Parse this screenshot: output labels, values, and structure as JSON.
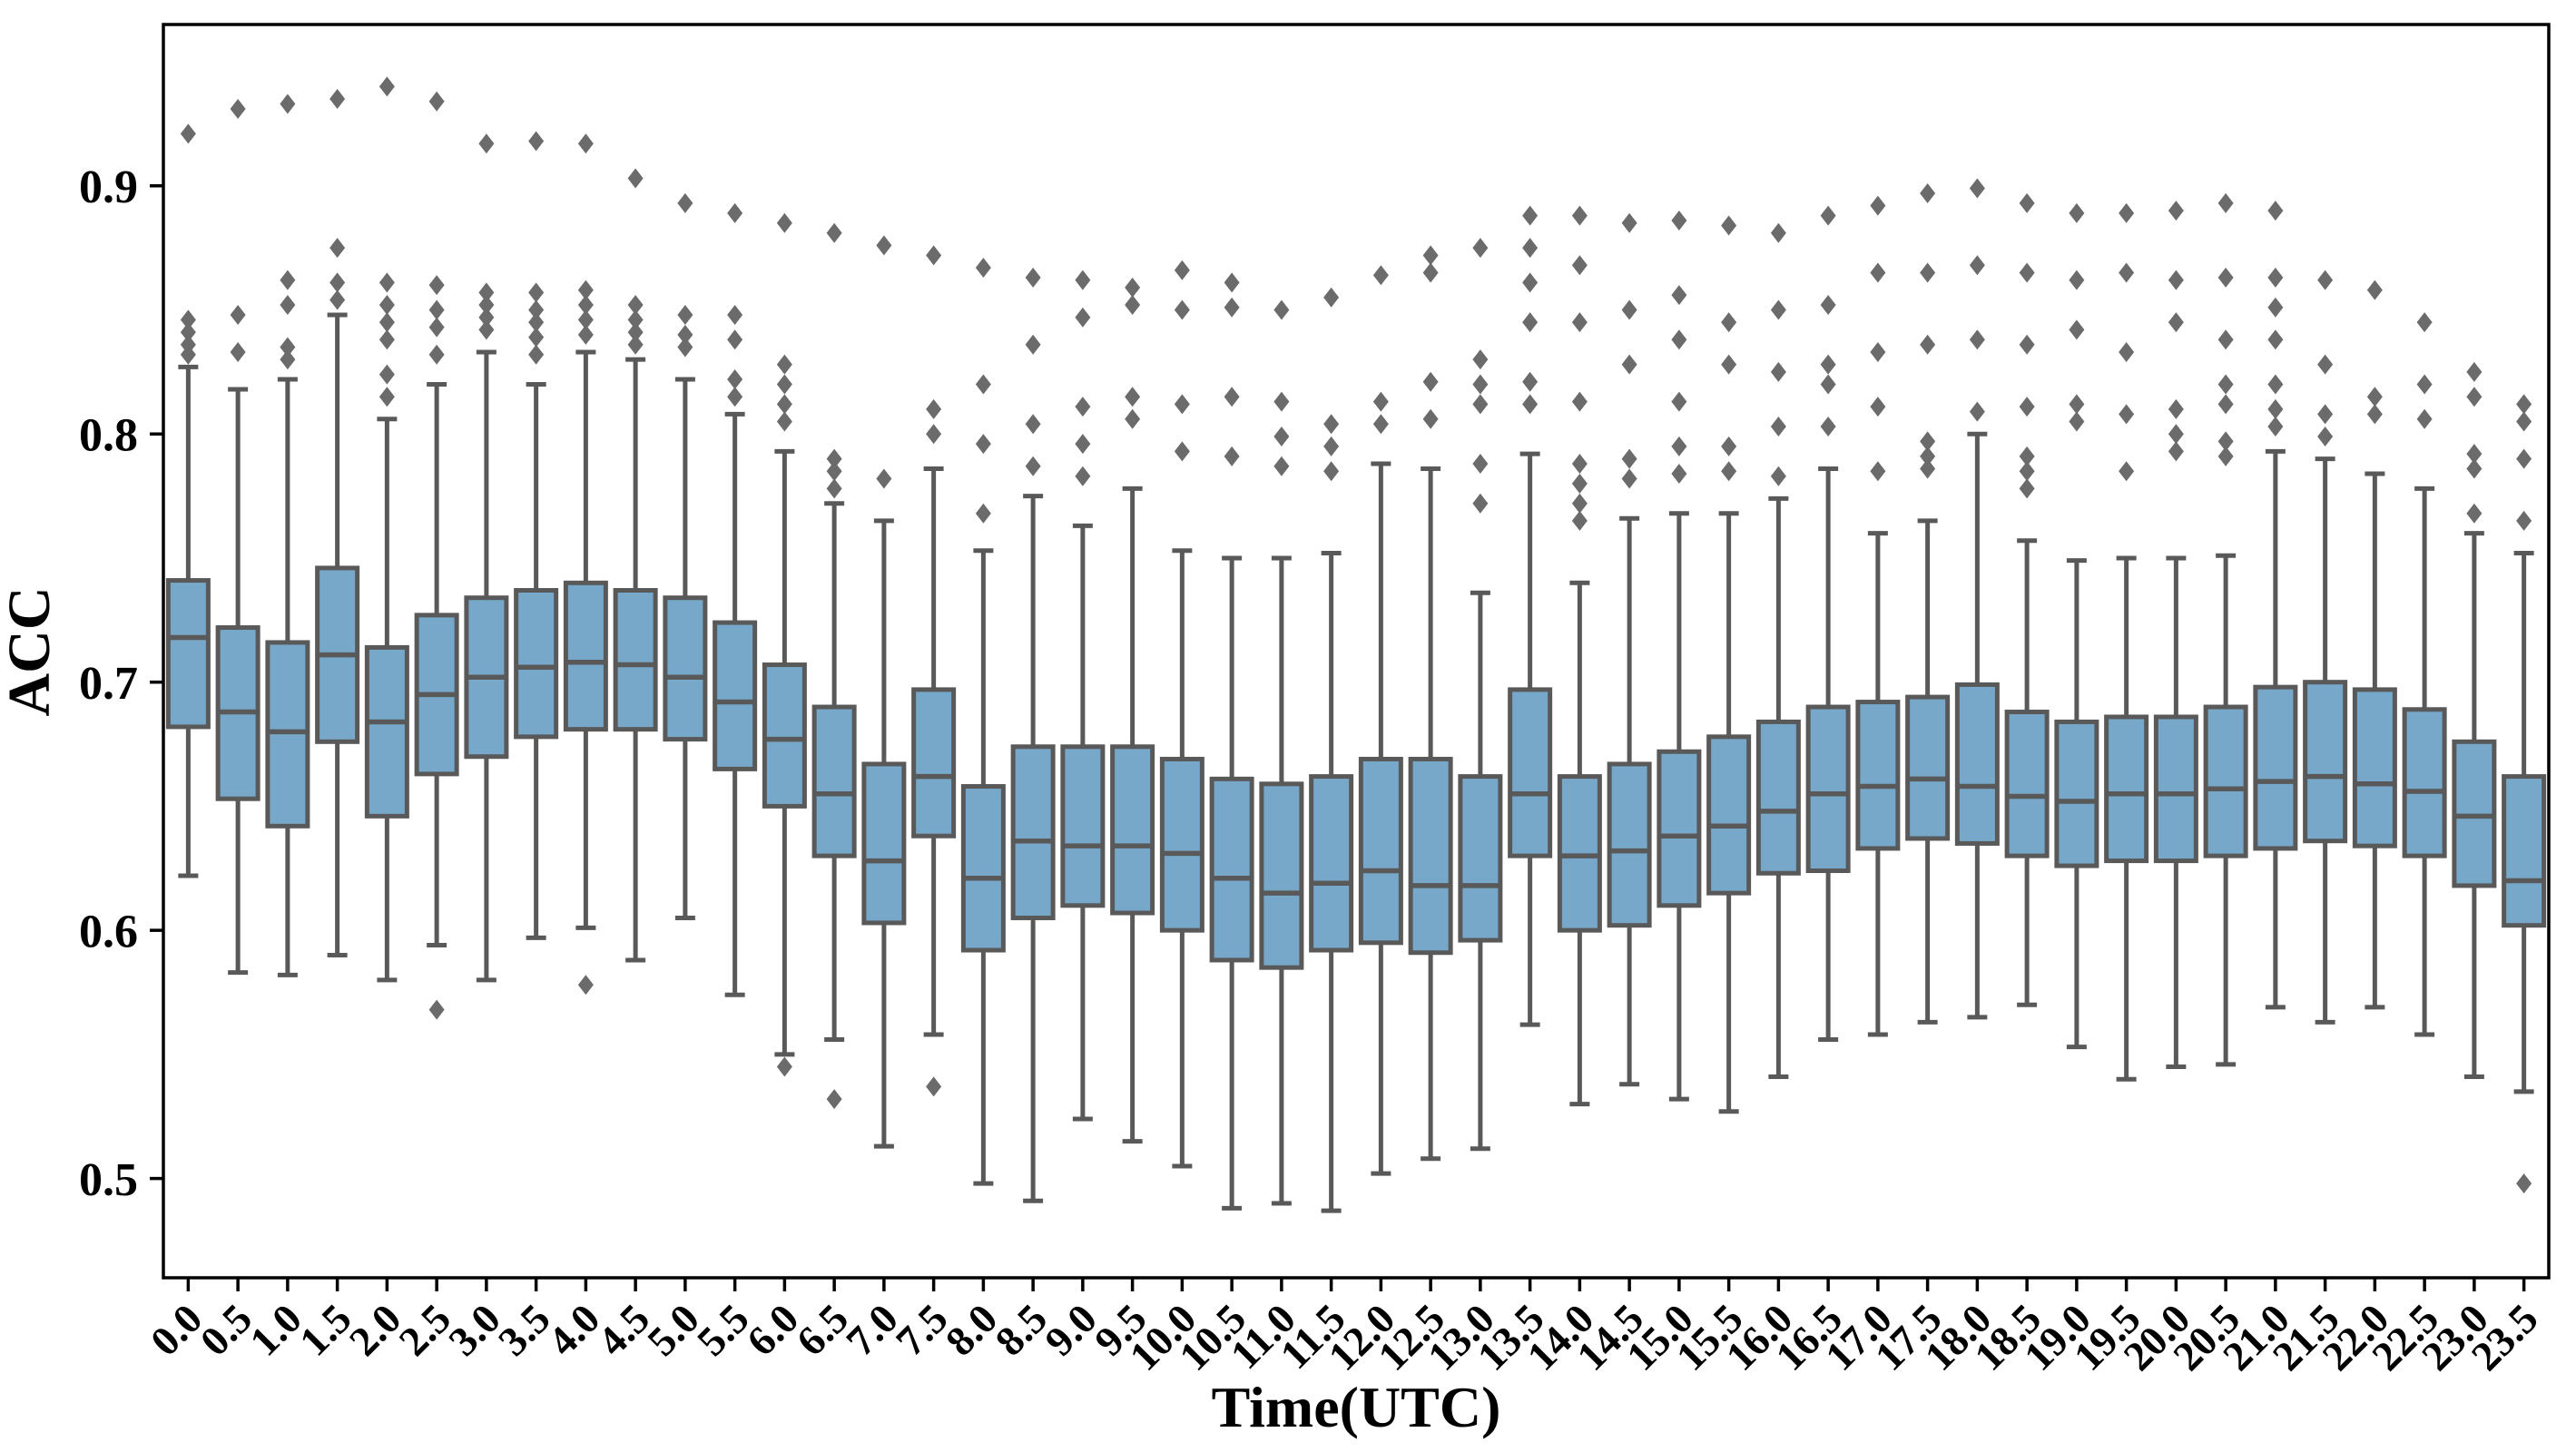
{
  "figure": {
    "background": "#ffffff"
  },
  "chart_data": {
    "type": "box",
    "title": "",
    "xlabel": "Time(UTC)",
    "ylabel": "ACC",
    "grid": false,
    "legend_position": "none",
    "ylim": [
      0.46,
      0.965
    ],
    "y_ticks": [
      {
        "value": 0.5,
        "label": "0.5"
      },
      {
        "value": 0.6,
        "label": "0.6"
      },
      {
        "value": 0.7,
        "label": "0.7"
      },
      {
        "value": 0.8,
        "label": "0.8"
      },
      {
        "value": 0.9,
        "label": "0.9"
      }
    ],
    "styles": {
      "box_fill": "#77a8c9",
      "box_edge": "#595959",
      "whisker_color": "#595959",
      "median_color": "#595959",
      "outlier_color": "#6b6b6b",
      "axis_color": "#000000"
    },
    "boxes": [
      {
        "time": "0.0",
        "q1": 0.682,
        "median": 0.718,
        "q3": 0.741,
        "whisker_low": 0.622,
        "whisker_high": 0.827,
        "outliers": [
          0.832,
          0.836,
          0.841,
          0.846,
          0.921
        ]
      },
      {
        "time": "0.5",
        "q1": 0.653,
        "median": 0.688,
        "q3": 0.722,
        "whisker_low": 0.583,
        "whisker_high": 0.818,
        "outliers": [
          0.833,
          0.848,
          0.931
        ]
      },
      {
        "time": "1.0",
        "q1": 0.642,
        "median": 0.68,
        "q3": 0.716,
        "whisker_low": 0.582,
        "whisker_high": 0.822,
        "outliers": [
          0.83,
          0.835,
          0.852,
          0.862,
          0.933
        ]
      },
      {
        "time": "1.5",
        "q1": 0.676,
        "median": 0.711,
        "q3": 0.746,
        "whisker_low": 0.59,
        "whisker_high": 0.848,
        "outliers": [
          0.854,
          0.861,
          0.875,
          0.935
        ]
      },
      {
        "time": "2.0",
        "q1": 0.646,
        "median": 0.684,
        "q3": 0.714,
        "whisker_low": 0.58,
        "whisker_high": 0.806,
        "outliers": [
          0.815,
          0.824,
          0.838,
          0.845,
          0.852,
          0.861,
          0.94
        ]
      },
      {
        "time": "2.5",
        "q1": 0.663,
        "median": 0.695,
        "q3": 0.727,
        "whisker_low": 0.594,
        "whisker_high": 0.82,
        "outliers": [
          0.568,
          0.832,
          0.843,
          0.85,
          0.86,
          0.934
        ]
      },
      {
        "time": "3.0",
        "q1": 0.67,
        "median": 0.702,
        "q3": 0.734,
        "whisker_low": 0.58,
        "whisker_high": 0.833,
        "outliers": [
          0.842,
          0.847,
          0.852,
          0.857,
          0.917
        ]
      },
      {
        "time": "3.5",
        "q1": 0.678,
        "median": 0.706,
        "q3": 0.737,
        "whisker_low": 0.597,
        "whisker_high": 0.82,
        "outliers": [
          0.832,
          0.839,
          0.845,
          0.85,
          0.857,
          0.918
        ]
      },
      {
        "time": "4.0",
        "q1": 0.681,
        "median": 0.708,
        "q3": 0.74,
        "whisker_low": 0.601,
        "whisker_high": 0.833,
        "outliers": [
          0.578,
          0.84,
          0.846,
          0.852,
          0.858,
          0.917
        ]
      },
      {
        "time": "4.5",
        "q1": 0.681,
        "median": 0.707,
        "q3": 0.737,
        "whisker_low": 0.588,
        "whisker_high": 0.83,
        "outliers": [
          0.836,
          0.841,
          0.846,
          0.852,
          0.903
        ]
      },
      {
        "time": "5.0",
        "q1": 0.677,
        "median": 0.702,
        "q3": 0.734,
        "whisker_low": 0.605,
        "whisker_high": 0.822,
        "outliers": [
          0.835,
          0.84,
          0.848,
          0.893
        ]
      },
      {
        "time": "5.5",
        "q1": 0.665,
        "median": 0.692,
        "q3": 0.724,
        "whisker_low": 0.574,
        "whisker_high": 0.808,
        "outliers": [
          0.815,
          0.822,
          0.838,
          0.848,
          0.889
        ]
      },
      {
        "time": "6.0",
        "q1": 0.65,
        "median": 0.677,
        "q3": 0.707,
        "whisker_low": 0.55,
        "whisker_high": 0.793,
        "outliers": [
          0.545,
          0.805,
          0.812,
          0.82,
          0.828,
          0.885
        ]
      },
      {
        "time": "6.5",
        "q1": 0.63,
        "median": 0.655,
        "q3": 0.69,
        "whisker_low": 0.556,
        "whisker_high": 0.772,
        "outliers": [
          0.532,
          0.778,
          0.785,
          0.79,
          0.881
        ]
      },
      {
        "time": "7.0",
        "q1": 0.603,
        "median": 0.628,
        "q3": 0.667,
        "whisker_low": 0.513,
        "whisker_high": 0.765,
        "outliers": [
          0.782,
          0.876
        ]
      },
      {
        "time": "7.5",
        "q1": 0.638,
        "median": 0.662,
        "q3": 0.697,
        "whisker_low": 0.558,
        "whisker_high": 0.786,
        "outliers": [
          0.537,
          0.8,
          0.81,
          0.872
        ]
      },
      {
        "time": "8.0",
        "q1": 0.592,
        "median": 0.621,
        "q3": 0.658,
        "whisker_low": 0.498,
        "whisker_high": 0.753,
        "outliers": [
          0.768,
          0.796,
          0.82,
          0.867
        ]
      },
      {
        "time": "8.5",
        "q1": 0.605,
        "median": 0.636,
        "q3": 0.674,
        "whisker_low": 0.491,
        "whisker_high": 0.775,
        "outliers": [
          0.787,
          0.804,
          0.836,
          0.863
        ]
      },
      {
        "time": "9.0",
        "q1": 0.61,
        "median": 0.634,
        "q3": 0.674,
        "whisker_low": 0.524,
        "whisker_high": 0.763,
        "outliers": [
          0.783,
          0.796,
          0.811,
          0.847,
          0.862
        ]
      },
      {
        "time": "9.5",
        "q1": 0.607,
        "median": 0.634,
        "q3": 0.674,
        "whisker_low": 0.515,
        "whisker_high": 0.778,
        "outliers": [
          0.806,
          0.815,
          0.852,
          0.859
        ]
      },
      {
        "time": "10.0",
        "q1": 0.6,
        "median": 0.631,
        "q3": 0.669,
        "whisker_low": 0.505,
        "whisker_high": 0.753,
        "outliers": [
          0.793,
          0.812,
          0.85,
          0.866
        ]
      },
      {
        "time": "10.5",
        "q1": 0.588,
        "median": 0.621,
        "q3": 0.661,
        "whisker_low": 0.488,
        "whisker_high": 0.75,
        "outliers": [
          0.791,
          0.815,
          0.851,
          0.861
        ]
      },
      {
        "time": "11.0",
        "q1": 0.585,
        "median": 0.615,
        "q3": 0.659,
        "whisker_low": 0.49,
        "whisker_high": 0.75,
        "outliers": [
          0.787,
          0.799,
          0.813,
          0.85
        ]
      },
      {
        "time": "11.5",
        "q1": 0.592,
        "median": 0.619,
        "q3": 0.662,
        "whisker_low": 0.487,
        "whisker_high": 0.752,
        "outliers": [
          0.785,
          0.795,
          0.804,
          0.855
        ]
      },
      {
        "time": "12.0",
        "q1": 0.595,
        "median": 0.624,
        "q3": 0.669,
        "whisker_low": 0.502,
        "whisker_high": 0.788,
        "outliers": [
          0.804,
          0.813,
          0.864
        ]
      },
      {
        "time": "12.5",
        "q1": 0.591,
        "median": 0.618,
        "q3": 0.669,
        "whisker_low": 0.508,
        "whisker_high": 0.786,
        "outliers": [
          0.806,
          0.821,
          0.865,
          0.872
        ]
      },
      {
        "time": "13.0",
        "q1": 0.596,
        "median": 0.618,
        "q3": 0.662,
        "whisker_low": 0.512,
        "whisker_high": 0.736,
        "outliers": [
          0.772,
          0.788,
          0.812,
          0.82,
          0.83,
          0.875
        ]
      },
      {
        "time": "13.5",
        "q1": 0.63,
        "median": 0.655,
        "q3": 0.697,
        "whisker_low": 0.562,
        "whisker_high": 0.792,
        "outliers": [
          0.812,
          0.821,
          0.845,
          0.861,
          0.875,
          0.888
        ]
      },
      {
        "time": "14.0",
        "q1": 0.6,
        "median": 0.63,
        "q3": 0.662,
        "whisker_low": 0.53,
        "whisker_high": 0.74,
        "outliers": [
          0.765,
          0.772,
          0.78,
          0.788,
          0.813,
          0.845,
          0.868,
          0.888
        ]
      },
      {
        "time": "14.5",
        "q1": 0.602,
        "median": 0.632,
        "q3": 0.667,
        "whisker_low": 0.538,
        "whisker_high": 0.766,
        "outliers": [
          0.782,
          0.79,
          0.828,
          0.85,
          0.885
        ]
      },
      {
        "time": "15.0",
        "q1": 0.61,
        "median": 0.638,
        "q3": 0.672,
        "whisker_low": 0.532,
        "whisker_high": 0.768,
        "outliers": [
          0.784,
          0.795,
          0.813,
          0.838,
          0.856,
          0.886
        ]
      },
      {
        "time": "15.5",
        "q1": 0.615,
        "median": 0.642,
        "q3": 0.678,
        "whisker_low": 0.527,
        "whisker_high": 0.768,
        "outliers": [
          0.785,
          0.795,
          0.828,
          0.845,
          0.884
        ]
      },
      {
        "time": "16.0",
        "q1": 0.623,
        "median": 0.648,
        "q3": 0.684,
        "whisker_low": 0.541,
        "whisker_high": 0.774,
        "outliers": [
          0.783,
          0.803,
          0.825,
          0.85,
          0.881
        ]
      },
      {
        "time": "16.5",
        "q1": 0.624,
        "median": 0.655,
        "q3": 0.69,
        "whisker_low": 0.556,
        "whisker_high": 0.786,
        "outliers": [
          0.803,
          0.82,
          0.828,
          0.852,
          0.888
        ]
      },
      {
        "time": "17.0",
        "q1": 0.633,
        "median": 0.658,
        "q3": 0.692,
        "whisker_low": 0.558,
        "whisker_high": 0.76,
        "outliers": [
          0.785,
          0.811,
          0.833,
          0.865,
          0.892
        ]
      },
      {
        "time": "17.5",
        "q1": 0.637,
        "median": 0.661,
        "q3": 0.694,
        "whisker_low": 0.563,
        "whisker_high": 0.765,
        "outliers": [
          0.786,
          0.791,
          0.797,
          0.836,
          0.865,
          0.897
        ]
      },
      {
        "time": "18.0",
        "q1": 0.635,
        "median": 0.658,
        "q3": 0.699,
        "whisker_low": 0.565,
        "whisker_high": 0.8,
        "outliers": [
          0.809,
          0.838,
          0.868,
          0.899
        ]
      },
      {
        "time": "18.5",
        "q1": 0.63,
        "median": 0.654,
        "q3": 0.688,
        "whisker_low": 0.57,
        "whisker_high": 0.757,
        "outliers": [
          0.778,
          0.785,
          0.791,
          0.811,
          0.836,
          0.865,
          0.893
        ]
      },
      {
        "time": "19.0",
        "q1": 0.626,
        "median": 0.652,
        "q3": 0.684,
        "whisker_low": 0.553,
        "whisker_high": 0.749,
        "outliers": [
          0.805,
          0.812,
          0.842,
          0.862,
          0.889
        ]
      },
      {
        "time": "19.5",
        "q1": 0.628,
        "median": 0.655,
        "q3": 0.686,
        "whisker_low": 0.54,
        "whisker_high": 0.75,
        "outliers": [
          0.785,
          0.808,
          0.833,
          0.865,
          0.889
        ]
      },
      {
        "time": "20.0",
        "q1": 0.628,
        "median": 0.655,
        "q3": 0.686,
        "whisker_low": 0.545,
        "whisker_high": 0.75,
        "outliers": [
          0.793,
          0.8,
          0.81,
          0.845,
          0.862,
          0.89
        ]
      },
      {
        "time": "20.5",
        "q1": 0.63,
        "median": 0.657,
        "q3": 0.69,
        "whisker_low": 0.546,
        "whisker_high": 0.751,
        "outliers": [
          0.791,
          0.797,
          0.812,
          0.82,
          0.838,
          0.863,
          0.893
        ]
      },
      {
        "time": "21.0",
        "q1": 0.633,
        "median": 0.66,
        "q3": 0.698,
        "whisker_low": 0.569,
        "whisker_high": 0.793,
        "outliers": [
          0.803,
          0.81,
          0.82,
          0.838,
          0.851,
          0.863,
          0.89
        ]
      },
      {
        "time": "21.5",
        "q1": 0.636,
        "median": 0.662,
        "q3": 0.7,
        "whisker_low": 0.563,
        "whisker_high": 0.79,
        "outliers": [
          0.799,
          0.808,
          0.828,
          0.862
        ]
      },
      {
        "time": "22.0",
        "q1": 0.634,
        "median": 0.659,
        "q3": 0.697,
        "whisker_low": 0.569,
        "whisker_high": 0.784,
        "outliers": [
          0.808,
          0.815,
          0.858
        ]
      },
      {
        "time": "22.5",
        "q1": 0.63,
        "median": 0.656,
        "q3": 0.689,
        "whisker_low": 0.558,
        "whisker_high": 0.778,
        "outliers": [
          0.806,
          0.82,
          0.845
        ]
      },
      {
        "time": "23.0",
        "q1": 0.618,
        "median": 0.646,
        "q3": 0.676,
        "whisker_low": 0.541,
        "whisker_high": 0.76,
        "outliers": [
          0.768,
          0.786,
          0.792,
          0.815,
          0.825
        ]
      },
      {
        "time": "23.5",
        "q1": 0.602,
        "median": 0.62,
        "q3": 0.662,
        "whisker_low": 0.535,
        "whisker_high": 0.752,
        "outliers": [
          0.498,
          0.765,
          0.79,
          0.805,
          0.812
        ]
      }
    ]
  }
}
